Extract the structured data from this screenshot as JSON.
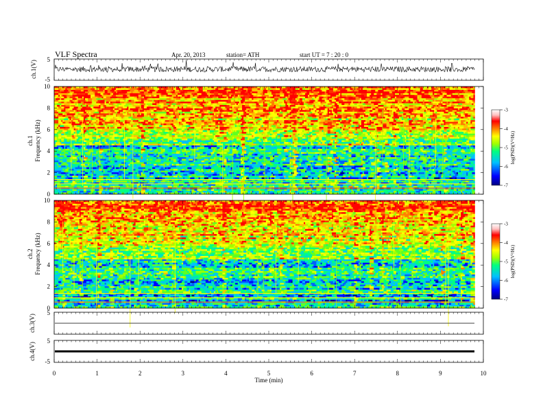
{
  "header": {
    "title": "VLF Spectra",
    "date": "Apr. 20, 2013",
    "station": "station= ATH",
    "start": "start  UT  =   7  : 20 : 0"
  },
  "chart_data": [
    {
      "type": "line",
      "panel": "ch1-waveform",
      "ylabel": "ch.1(V)",
      "ylim": [
        -5,
        5
      ],
      "y_ticks": [
        "5",
        "-5"
      ],
      "xlim": [
        0,
        10
      ],
      "description_level": 0.2,
      "noise_amplitude": 1.3
    },
    {
      "type": "heatmap",
      "panel": "ch1-spectrogram",
      "ylabel": [
        "ch.1",
        "Frequency  (kHz)"
      ],
      "ylim": [
        0,
        10
      ],
      "y_ticks": [
        "0",
        "2",
        "4",
        "6",
        "8",
        "10"
      ],
      "xlim": [
        0,
        9.8
      ],
      "colorbar": {
        "label": "log(PSD)(V²/Hz)",
        "range": [
          -7,
          -3
        ],
        "ticks": [
          "-3",
          "-4",
          "-5",
          "-6",
          "-7"
        ]
      }
    },
    {
      "type": "heatmap",
      "panel": "ch2-spectrogram",
      "ylabel": [
        "ch.2",
        "Frequency  (kHz)"
      ],
      "ylim": [
        0,
        10
      ],
      "y_ticks": [
        "0",
        "2",
        "4",
        "6",
        "8",
        "10"
      ],
      "xlim": [
        0,
        9.8
      ],
      "colorbar": {
        "label": "log(PSD)(V²/Hz)",
        "range": [
          -7,
          -3
        ],
        "ticks": [
          "-3",
          "-4",
          "-5",
          "-6",
          "-7"
        ]
      }
    },
    {
      "type": "line",
      "panel": "ch3-waveform",
      "ylabel": "ch.3(V)",
      "ylim": [
        -5,
        5
      ],
      "y_ticks": [
        "5"
      ],
      "level": 0
    },
    {
      "type": "line",
      "panel": "ch4-waveform",
      "ylabel": "ch.4(V)",
      "ylim": [
        -5,
        5
      ],
      "y_ticks": [
        "5",
        "-5"
      ],
      "level": 0
    }
  ],
  "x_axis": {
    "label": "Time  (min)",
    "ticks": [
      "0",
      "1",
      "2",
      "3",
      "4",
      "5",
      "6",
      "7",
      "8",
      "9",
      "10"
    ],
    "range": [
      0,
      10
    ]
  },
  "colors": {
    "colormap": [
      "#000080",
      "#0000ff",
      "#00c0ff",
      "#00ff80",
      "#a0ff00",
      "#ffff00",
      "#ff8000",
      "#ff0000",
      "#ffc0c0",
      "#ffffff"
    ]
  }
}
